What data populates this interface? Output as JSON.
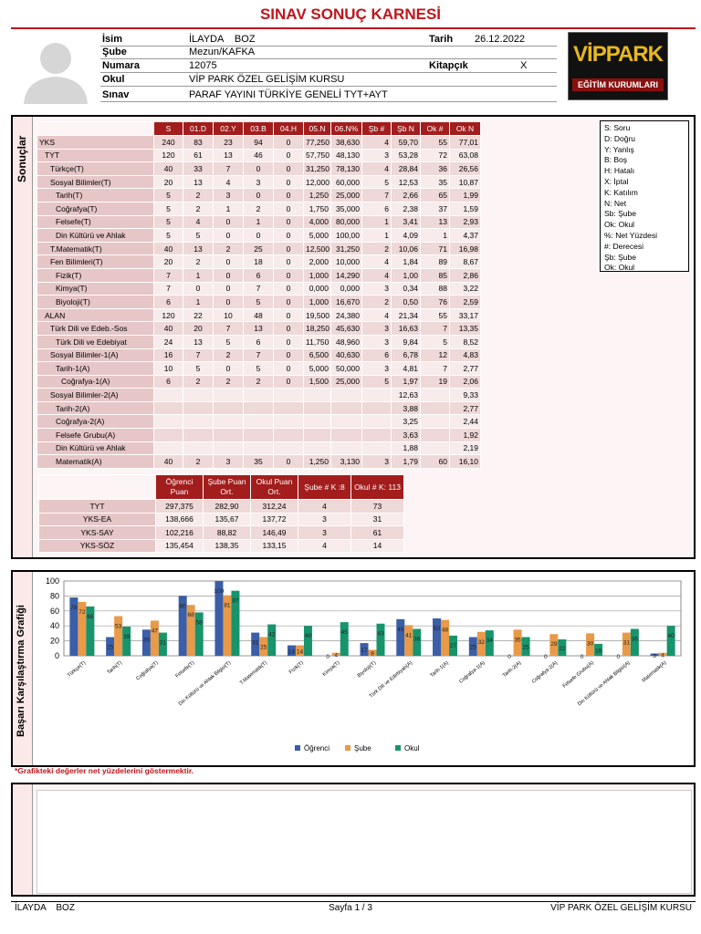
{
  "header": {
    "title": "SINAV SONUÇ KARNESİ"
  },
  "student": {
    "fields": [
      {
        "label": "İsim",
        "value": "İLAYDA    BOZ"
      },
      {
        "label": "Şube",
        "value": "Mezun/KAFKA"
      },
      {
        "label": "Numara",
        "value": "12075"
      },
      {
        "label": "Okul",
        "value": "VİP PARK ÖZEL GELİŞİM KURSU"
      },
      {
        "label": "Sınav",
        "value": "PARAF YAYINI TÜRKİYE GENELİ TYT+AYT"
      }
    ],
    "date": {
      "label": "Tarih",
      "value": "26.12.2022"
    },
    "booklet": {
      "label": "Kitapçık",
      "value": "X"
    }
  },
  "logo": {
    "brand": "VİPPARK",
    "subtitle": "EĞİTİM KURUMLARI"
  },
  "results": {
    "section_label": "Sonuçlar",
    "columns": [
      "S",
      "01.D",
      "02.Y",
      "03.B",
      "04.H",
      "05.N",
      "06.N%",
      "Şb #",
      "Şb N",
      "Ok #",
      "Ok N"
    ],
    "rows": [
      {
        "name": "YKS",
        "cells": [
          "240",
          "83",
          "23",
          "94",
          "0",
          "77,250",
          "38,630",
          "4",
          "59,70",
          "55",
          "77,01"
        ]
      },
      {
        "name": "TYT",
        "cells": [
          "120",
          "61",
          "13",
          "46",
          "0",
          "57,750",
          "48,130",
          "3",
          "53,28",
          "72",
          "63,08"
        ]
      },
      {
        "name": "Türkçe(T)",
        "cells": [
          "40",
          "33",
          "7",
          "0",
          "0",
          "31,250",
          "78,130",
          "4",
          "28,84",
          "36",
          "26,56"
        ]
      },
      {
        "name": "Sosyal Bilimler(T)",
        "cells": [
          "20",
          "13",
          "4",
          "3",
          "0",
          "12,000",
          "60,000",
          "5",
          "12,53",
          "35",
          "10,87"
        ]
      },
      {
        "name": "Tarih(T)",
        "cells": [
          "5",
          "2",
          "3",
          "0",
          "0",
          "1,250",
          "25,000",
          "7",
          "2,66",
          "65",
          "1,99"
        ]
      },
      {
        "name": "Coğrafya(T)",
        "cells": [
          "5",
          "2",
          "1",
          "2",
          "0",
          "1,750",
          "35,000",
          "6",
          "2,38",
          "37",
          "1,59"
        ]
      },
      {
        "name": "Felsefe(T)",
        "cells": [
          "5",
          "4",
          "0",
          "1",
          "0",
          "4,000",
          "80,000",
          "1",
          "3,41",
          "13",
          "2,93"
        ]
      },
      {
        "name": "Din Kültürü ve Ahlak",
        "cells": [
          "5",
          "5",
          "0",
          "0",
          "0",
          "5,000",
          "100,00",
          "1",
          "4,09",
          "1",
          "4,37"
        ]
      },
      {
        "name": "T.Matematik(T)",
        "cells": [
          "40",
          "13",
          "2",
          "25",
          "0",
          "12,500",
          "31,250",
          "2",
          "10,06",
          "71",
          "16,98"
        ]
      },
      {
        "name": "Fen Bilimleri(T)",
        "cells": [
          "20",
          "2",
          "0",
          "18",
          "0",
          "2,000",
          "10,000",
          "4",
          "1,84",
          "89",
          "8,67"
        ]
      },
      {
        "name": "Fizik(T)",
        "cells": [
          "7",
          "1",
          "0",
          "6",
          "0",
          "1,000",
          "14,290",
          "4",
          "1,00",
          "85",
          "2,86"
        ]
      },
      {
        "name": "Kimya(T)",
        "cells": [
          "7",
          "0",
          "0",
          "7",
          "0",
          "0,000",
          "0,000",
          "3",
          "0,34",
          "88",
          "3,22"
        ]
      },
      {
        "name": "Biyoloji(T)",
        "cells": [
          "6",
          "1",
          "0",
          "5",
          "0",
          "1,000",
          "16,670",
          "2",
          "0,50",
          "76",
          "2,59"
        ]
      },
      {
        "name": "ALAN",
        "cells": [
          "120",
          "22",
          "10",
          "48",
          "0",
          "19,500",
          "24,380",
          "4",
          "21,34",
          "55",
          "33,17"
        ]
      },
      {
        "name": "Türk Dili ve Edeb.-Sos",
        "cells": [
          "40",
          "20",
          "7",
          "13",
          "0",
          "18,250",
          "45,630",
          "3",
          "16,63",
          "7",
          "13,35"
        ]
      },
      {
        "name": "Türk Dili ve Edebiyat",
        "cells": [
          "24",
          "13",
          "5",
          "6",
          "0",
          "11,750",
          "48,960",
          "3",
          "9,84",
          "5",
          "8,52"
        ]
      },
      {
        "name": "Sosyal Bilimler-1(A)",
        "cells": [
          "16",
          "7",
          "2",
          "7",
          "0",
          "6,500",
          "40,630",
          "6",
          "6,78",
          "12",
          "4,83"
        ]
      },
      {
        "name": "Tarih-1(A)",
        "cells": [
          "10",
          "5",
          "0",
          "5",
          "0",
          "5,000",
          "50,000",
          "3",
          "4,81",
          "7",
          "2,77"
        ]
      },
      {
        "name": "Coğrafya-1(A)",
        "cells": [
          "6",
          "2",
          "2",
          "2",
          "0",
          "1,500",
          "25,000",
          "5",
          "1,97",
          "19",
          "2,06"
        ]
      },
      {
        "name": "Sosyal Bilimler-2(A)",
        "cells": [
          null,
          null,
          null,
          null,
          null,
          null,
          null,
          null,
          "12,63",
          null,
          "9,33"
        ]
      },
      {
        "name": "Tarih-2(A)",
        "cells": [
          null,
          null,
          null,
          null,
          null,
          null,
          null,
          null,
          "3,88",
          null,
          "2,77"
        ]
      },
      {
        "name": "Coğrafya-2(A)",
        "cells": [
          null,
          null,
          null,
          null,
          null,
          null,
          null,
          null,
          "3,25",
          null,
          "2,44"
        ]
      },
      {
        "name": "Felsefe Grubu(A)",
        "cells": [
          null,
          null,
          null,
          null,
          null,
          null,
          null,
          null,
          "3,63",
          null,
          "1,92"
        ]
      },
      {
        "name": "Din Kültürü ve Ahlak",
        "cells": [
          null,
          null,
          null,
          null,
          null,
          null,
          null,
          null,
          "1,88",
          null,
          "2,19"
        ]
      },
      {
        "name": "Matematik(A)",
        "cells": [
          "40",
          "2",
          "3",
          "35",
          "0",
          "1,250",
          "3,130",
          "3",
          "1,79",
          "60",
          "16,10"
        ]
      }
    ]
  },
  "legend": [
    "S: Soru",
    "D: Doğru",
    "Y: Yanlış",
    "B: Boş",
    "H: Hatalı",
    "X: İptal",
    "K: Katılım",
    "N: Net",
    "Sb: Şube",
    "Ok: Okul",
    "%: Net Yüzdesi",
    "#: Derecesi",
    "Şb: Şube",
    "Ok: Okul"
  ],
  "scores": {
    "columns": [
      "Öğrenci Puan",
      "Şube Puan Ort.",
      "Okul Puan Ort.",
      "Şube # K :8",
      "Okul # K: 113"
    ],
    "rows": [
      {
        "name": "TYT",
        "cells": [
          "297,375",
          "282,90",
          "312,24",
          "4",
          "73"
        ]
      },
      {
        "name": "YKS-EA",
        "cells": [
          "138,666",
          "135,67",
          "137,72",
          "3",
          "31"
        ]
      },
      {
        "name": "YKS-SAY",
        "cells": [
          "102,216",
          "88,82",
          "146,49",
          "3",
          "61"
        ]
      },
      {
        "name": "YKS-SÖZ",
        "cells": [
          "135,454",
          "138,35",
          "133,15",
          "4",
          "14"
        ]
      }
    ]
  },
  "chart_section": {
    "label": "Başarı Karşılaştırma Grafiği",
    "note": "*Grafikteki değerler net yüzdelerini göstermektir."
  },
  "chart_data": {
    "type": "bar",
    "categories": [
      "Türkçe(T)",
      "Tarih(T)",
      "Coğrafya(T)",
      "Felsefe(T)",
      "Din Kültürü ve Ahlak Bilgisi(T)",
      "T.Matematik(T)",
      "Fizik(T)",
      "Kimya(T)",
      "Biyoloji(T)",
      "Türk Dili ve Edebiyatı(A)",
      "Tarih-1(A)",
      "Coğrafya-1(A)",
      "Tarih-2(A)",
      "Coğrafya-2(A)",
      "Felsefe Grubu(A)",
      "Din Kültürü ve Ahlak Bilgisi(A)",
      "Matematik(A)"
    ],
    "series": [
      {
        "name": "Öğrenci",
        "color": "#3a5ea8",
        "values": [
          78,
          25,
          35,
          80,
          100,
          31,
          14,
          0,
          17,
          49,
          50,
          25,
          0,
          0,
          0,
          0,
          3
        ]
      },
      {
        "name": "Şube",
        "color": "#e89a48",
        "values": [
          72,
          53,
          47,
          68,
          81,
          25,
          14,
          4,
          8,
          41,
          48,
          32,
          35,
          29,
          30,
          31,
          4
        ]
      },
      {
        "name": "Okul",
        "color": "#17946c",
        "values": [
          66,
          39,
          31,
          58,
          87,
          42,
          40,
          45,
          43,
          36,
          27,
          34,
          25,
          22,
          16,
          36,
          40
        ]
      }
    ],
    "ylim": [
      0,
      100
    ],
    "yticks": [
      0,
      20,
      40,
      60,
      80,
      100
    ],
    "grid": true,
    "legend": "bottom"
  },
  "footer": {
    "left": "İLAYDA    BOZ",
    "center": "Sayfa 1 / 3",
    "right": "VİP PARK ÖZEL GELİŞİM KURSU"
  }
}
